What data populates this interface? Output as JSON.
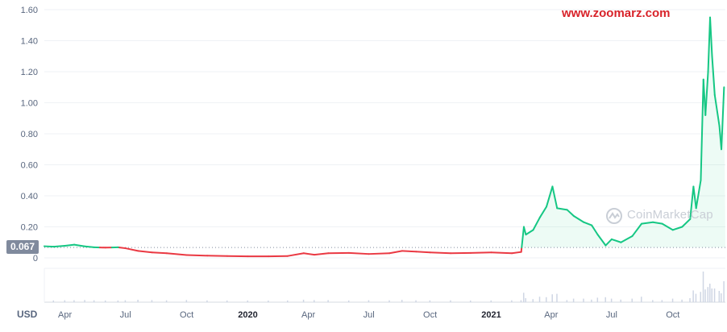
{
  "watermark": "www.zoomarz.com",
  "brand_watermark": "CoinMarketCap",
  "currency_label": "USD",
  "current_price_label": "0.067",
  "colors": {
    "up": "#16c784",
    "down": "#ea3943",
    "grid": "#eff2f5",
    "axis_text": "#58667e",
    "price_tag": "#808a9d",
    "volume": "#cfd6e4"
  },
  "chart_data": {
    "type": "line",
    "title": "",
    "xlabel": "",
    "ylabel": "",
    "ylim": [
      0,
      1.6
    ],
    "yticks": [
      "0",
      "0.20",
      "0.40",
      "0.60",
      "0.80",
      "1.00",
      "1.20",
      "1.40",
      "1.60"
    ],
    "xticks": [
      {
        "label": "Apr",
        "date": "2019-04-01",
        "bold": false
      },
      {
        "label": "Jul",
        "date": "2019-07-01",
        "bold": false
      },
      {
        "label": "Oct",
        "date": "2019-10-01",
        "bold": false
      },
      {
        "label": "2020",
        "date": "2020-01-01",
        "bold": true
      },
      {
        "label": "Apr",
        "date": "2020-04-01",
        "bold": false
      },
      {
        "label": "Jul",
        "date": "2020-07-01",
        "bold": false
      },
      {
        "label": "Oct",
        "date": "2020-10-01",
        "bold": false
      },
      {
        "label": "2021",
        "date": "2021-01-01",
        "bold": true
      },
      {
        "label": "Apr",
        "date": "2021-04-01",
        "bold": false
      },
      {
        "label": "Jul",
        "date": "2021-07-01",
        "bold": false
      },
      {
        "label": "Oct",
        "date": "2021-10-01",
        "bold": false
      }
    ],
    "reference_line": 0.067,
    "series": [
      {
        "values": [
          [
            "2019-03-01",
            0.075
          ],
          [
            "2019-03-15",
            0.072
          ],
          [
            "2019-04-01",
            0.078
          ],
          [
            "2019-04-15",
            0.085
          ],
          [
            "2019-05-01",
            0.074
          ],
          [
            "2019-05-15",
            0.068
          ],
          [
            "2019-06-01",
            0.066
          ],
          [
            "2019-06-20",
            0.068
          ],
          [
            "2019-07-01",
            0.062
          ],
          [
            "2019-07-20",
            0.045
          ],
          [
            "2019-08-10",
            0.035
          ],
          [
            "2019-09-01",
            0.03
          ],
          [
            "2019-10-01",
            0.018
          ],
          [
            "2019-11-01",
            0.014
          ],
          [
            "2019-12-01",
            0.012
          ],
          [
            "2020-01-01",
            0.01
          ],
          [
            "2020-02-01",
            0.01
          ],
          [
            "2020-03-01",
            0.012
          ],
          [
            "2020-03-25",
            0.03
          ],
          [
            "2020-04-10",
            0.02
          ],
          [
            "2020-05-01",
            0.03
          ],
          [
            "2020-06-01",
            0.032
          ],
          [
            "2020-07-01",
            0.025
          ],
          [
            "2020-08-01",
            0.03
          ],
          [
            "2020-08-20",
            0.045
          ],
          [
            "2020-09-10",
            0.04
          ],
          [
            "2020-10-01",
            0.035
          ],
          [
            "2020-11-01",
            0.03
          ],
          [
            "2020-12-01",
            0.032
          ],
          [
            "2021-01-01",
            0.035
          ],
          [
            "2021-02-01",
            0.03
          ],
          [
            "2021-02-15",
            0.038
          ],
          [
            "2021-02-19",
            0.2
          ],
          [
            "2021-02-22",
            0.15
          ],
          [
            "2021-03-05",
            0.18
          ],
          [
            "2021-03-15",
            0.26
          ],
          [
            "2021-03-25",
            0.33
          ],
          [
            "2021-04-03",
            0.46
          ],
          [
            "2021-04-10",
            0.32
          ],
          [
            "2021-04-25",
            0.31
          ],
          [
            "2021-05-05",
            0.27
          ],
          [
            "2021-05-20",
            0.23
          ],
          [
            "2021-06-01",
            0.21
          ],
          [
            "2021-06-10",
            0.15
          ],
          [
            "2021-06-22",
            0.08
          ],
          [
            "2021-07-01",
            0.12
          ],
          [
            "2021-07-15",
            0.1
          ],
          [
            "2021-08-01",
            0.14
          ],
          [
            "2021-08-15",
            0.22
          ],
          [
            "2021-09-01",
            0.23
          ],
          [
            "2021-09-15",
            0.22
          ],
          [
            "2021-10-01",
            0.18
          ],
          [
            "2021-10-15",
            0.2
          ],
          [
            "2021-10-27",
            0.25
          ],
          [
            "2021-11-01",
            0.46
          ],
          [
            "2021-11-05",
            0.32
          ],
          [
            "2021-11-12",
            0.5
          ],
          [
            "2021-11-16",
            1.15
          ],
          [
            "2021-11-19",
            0.92
          ],
          [
            "2021-11-23",
            1.2
          ],
          [
            "2021-11-26",
            1.55
          ],
          [
            "2021-11-29",
            1.3
          ],
          [
            "2021-12-03",
            1.05
          ],
          [
            "2021-12-10",
            0.85
          ],
          [
            "2021-12-13",
            0.7
          ],
          [
            "2021-12-17",
            1.1
          ]
        ]
      }
    ]
  }
}
